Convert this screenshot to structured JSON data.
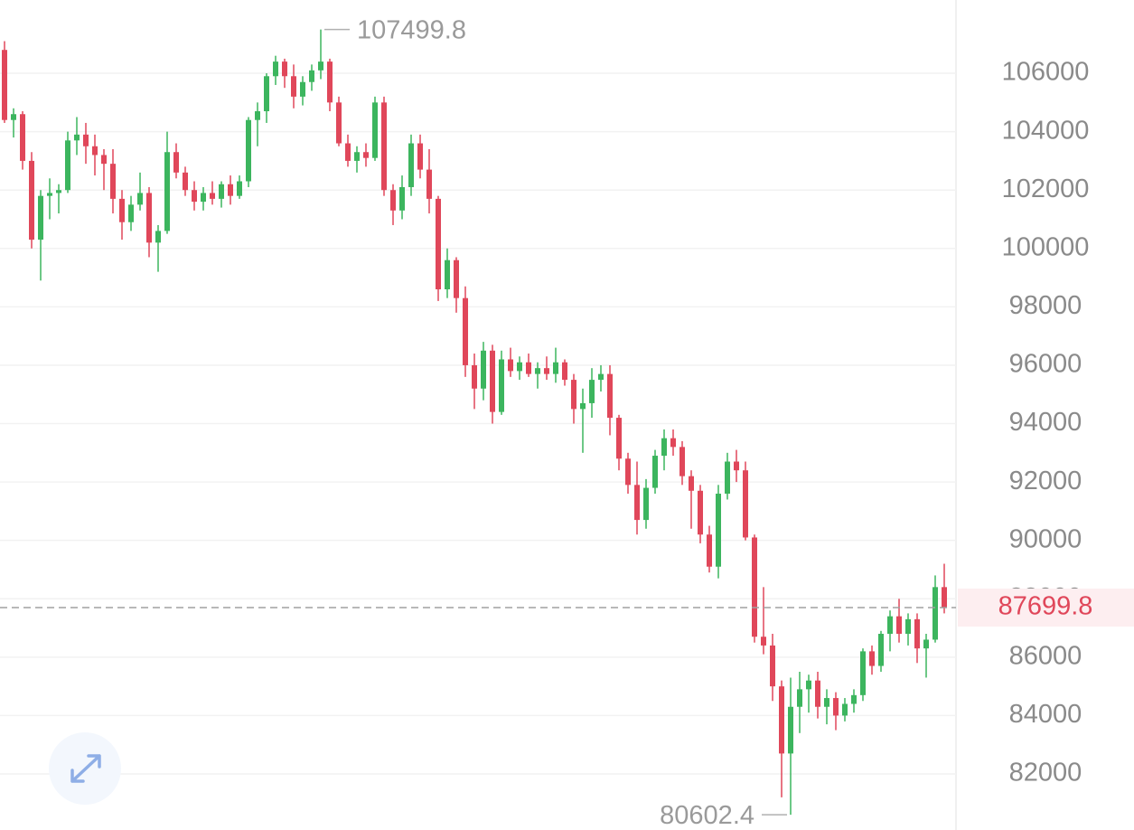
{
  "chart_data": {
    "type": "candlestick",
    "up_color": "#3cb55e",
    "down_color": "#e0475a",
    "ylim": [
      80080,
      108510
    ],
    "yticks": [
      82000,
      84000,
      86000,
      88000,
      90000,
      92000,
      94000,
      96000,
      98000,
      100000,
      102000,
      104000,
      106000
    ],
    "grid": true,
    "max_marker": 107499.8,
    "min_marker": 80602.4,
    "last_price": 87699.8,
    "open": [
      106800,
      104400,
      104600,
      103000,
      100300,
      101800,
      101900,
      102000,
      103700,
      103900,
      103500,
      103200,
      102900,
      101700,
      100900,
      101500,
      101900,
      100200,
      100600,
      103300,
      102600,
      102000,
      101600,
      101900,
      101700,
      102200,
      101800,
      102300,
      104400,
      104700,
      105900,
      106400,
      105900,
      105200,
      105700,
      106100,
      106400,
      105000,
      103600,
      103000,
      103300,
      103100,
      105000,
      102000,
      101300,
      102100,
      103600,
      102700,
      101700,
      98600,
      99600,
      98300,
      96000,
      95200,
      96500,
      94400,
      96200,
      95800,
      96100,
      95700,
      95900,
      95700,
      96100,
      95500,
      94500,
      94700,
      95500,
      95700,
      94200,
      92800,
      91900,
      90700,
      91800,
      92900,
      93500,
      93200,
      92200,
      91700,
      90200,
      89100,
      91600,
      92700,
      92400,
      90100,
      86700,
      86400,
      85000,
      82700,
      84300,
      84900,
      85200,
      84300,
      84600,
      84000,
      84400,
      84700,
      86200,
      85700,
      86800,
      87400,
      86800,
      87300,
      86300,
      86600,
      88400
    ],
    "high": [
      107100,
      104800,
      104700,
      103300,
      102000,
      102400,
      102200,
      104000,
      104500,
      104300,
      103900,
      103400,
      103400,
      102000,
      101800,
      102600,
      102100,
      100800,
      104000,
      103600,
      102800,
      102300,
      102100,
      102300,
      102300,
      102500,
      102500,
      104500,
      105000,
      106000,
      106600,
      106500,
      106300,
      105900,
      106300,
      107499.8,
      106500,
      105200,
      103900,
      103500,
      103600,
      105200,
      105200,
      102200,
      102500,
      103900,
      103900,
      103400,
      101800,
      100000,
      99700,
      98700,
      96400,
      96800,
      96700,
      96500,
      96600,
      96300,
      96400,
      96100,
      96300,
      96600,
      96200,
      95700,
      95200,
      95900,
      96000,
      96000,
      94300,
      93000,
      92700,
      92100,
      93100,
      93800,
      93800,
      93400,
      92400,
      91900,
      90500,
      91900,
      93000,
      93100,
      92700,
      90200,
      88400,
      86800,
      85200,
      85300,
      85500,
      85400,
      85500,
      84900,
      84800,
      84600,
      84900,
      86300,
      86400,
      86900,
      87600,
      88000,
      87500,
      87500,
      86800,
      88800,
      89200
    ],
    "low": [
      104300,
      103800,
      102700,
      100000,
      98900,
      101000,
      101200,
      101900,
      103200,
      102900,
      102500,
      102000,
      101200,
      100300,
      100600,
      101300,
      99700,
      99200,
      100500,
      102400,
      101800,
      101300,
      101300,
      101500,
      101400,
      101500,
      101700,
      102100,
      103500,
      104300,
      105600,
      105500,
      104800,
      104900,
      105400,
      105800,
      104700,
      103500,
      102800,
      102600,
      102800,
      103000,
      101800,
      100800,
      101000,
      101800,
      102400,
      101200,
      98200,
      98300,
      97800,
      95600,
      94500,
      94800,
      94000,
      94300,
      95600,
      95500,
      95600,
      95200,
      95500,
      95400,
      95300,
      94000,
      93000,
      94200,
      95100,
      93600,
      92400,
      91600,
      90200,
      90400,
      91600,
      92400,
      92900,
      91900,
      90400,
      89900,
      88900,
      88700,
      91400,
      92000,
      90000,
      86500,
      86100,
      84500,
      81200,
      80602.4,
      83400,
      84100,
      83900,
      83700,
      83500,
      83800,
      84100,
      84500,
      85400,
      85500,
      86200,
      86500,
      86400,
      85800,
      85300,
      86500,
      87500
    ],
    "close": [
      104400,
      104600,
      103000,
      100300,
      101800,
      101900,
      102000,
      103700,
      103900,
      103500,
      103200,
      102900,
      101700,
      100900,
      101500,
      101900,
      100200,
      100600,
      103300,
      102600,
      102000,
      101600,
      101900,
      101700,
      102200,
      101800,
      102300,
      104400,
      104700,
      105900,
      106400,
      105900,
      105200,
      105700,
      106100,
      106400,
      105000,
      103600,
      103000,
      103300,
      103100,
      105000,
      102000,
      101300,
      102100,
      103600,
      102700,
      101700,
      98600,
      99600,
      98300,
      96000,
      95200,
      96500,
      94400,
      96200,
      95800,
      96100,
      95700,
      95900,
      95700,
      96100,
      95500,
      94500,
      94700,
      95500,
      95700,
      94200,
      92800,
      91900,
      90700,
      91800,
      92900,
      93500,
      93200,
      92200,
      91700,
      90200,
      89100,
      91600,
      92700,
      92400,
      90100,
      86700,
      86400,
      85000,
      82700,
      84300,
      84900,
      85200,
      84300,
      84600,
      84000,
      84400,
      84700,
      86200,
      85700,
      86800,
      87400,
      86800,
      87300,
      86300,
      86600,
      88400,
      87699.8
    ]
  }
}
